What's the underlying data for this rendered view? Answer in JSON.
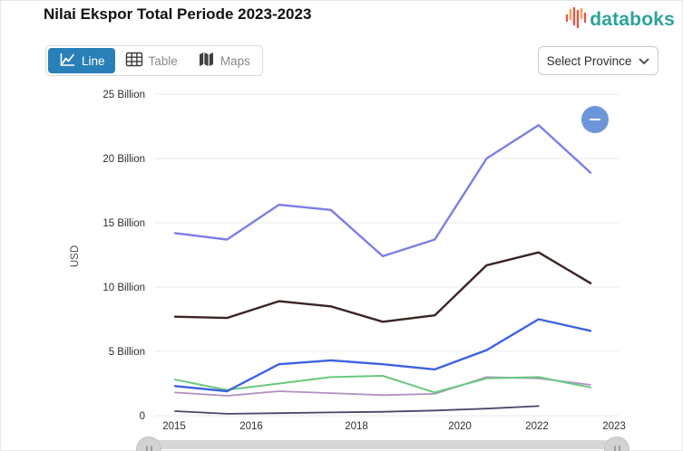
{
  "header": {
    "title": "Nilai Ekspor Total Periode 2023-2023",
    "brand": {
      "name": "databoks",
      "accent_color": "#2ba39b",
      "icon_colors": [
        "#e2574c",
        "#f2a04e"
      ]
    }
  },
  "toolbar": {
    "tabs": [
      {
        "label": "Line",
        "icon": "line-chart-icon",
        "active": true
      },
      {
        "label": "Table",
        "icon": "table-grid-icon",
        "active": false
      },
      {
        "label": "Maps",
        "icon": "folded-map-icon",
        "active": false
      }
    ],
    "active_tab_color": "#2980b9",
    "province_selector": {
      "label": "Select Province",
      "icon": "chevron-down-icon"
    }
  },
  "chart_controls": {
    "zoom_out_button": {
      "icon": "minus-icon",
      "color": "#6d96da"
    }
  },
  "chart_data": {
    "type": "line",
    "title": "Nilai Ekspor Total Periode 2023-2023",
    "x": [
      2015,
      2016,
      2017,
      2018,
      2019,
      2020,
      2021,
      2022,
      2023
    ],
    "x_tick_labels": [
      "2015",
      "2016",
      "2018",
      "2020",
      "2022",
      "2023"
    ],
    "ylabel": "USD",
    "unit": "USD billions",
    "ylim_billions": [
      0,
      25
    ],
    "grid": true,
    "legend": false,
    "y_ticks": [
      {
        "label": "0",
        "value": 0
      },
      {
        "label": "5 Billion",
        "value": 5
      },
      {
        "label": "10 Billion",
        "value": 10
      },
      {
        "label": "15 Billion",
        "value": 15
      },
      {
        "label": "20 Billion",
        "value": 20
      },
      {
        "label": "25 Billion",
        "value": 25
      }
    ],
    "series": [
      {
        "name": "series-dark-navy",
        "color": "#474868",
        "values_billions": [
          0.35,
          0.15,
          0.2,
          0.25,
          0.3,
          0.4,
          0.55,
          0.75,
          null
        ]
      },
      {
        "name": "series-violet",
        "color": "#b28fc6",
        "values_billions": [
          1.8,
          1.55,
          1.9,
          1.75,
          1.6,
          1.7,
          3.0,
          2.9,
          2.4
        ]
      },
      {
        "name": "series-green",
        "color": "#68c97d",
        "values_billions": [
          2.8,
          2.0,
          2.5,
          3.0,
          3.1,
          1.8,
          2.9,
          3.0,
          2.2
        ]
      },
      {
        "name": "series-blue",
        "color": "#3e63e0",
        "values_billions": [
          2.3,
          1.9,
          4.0,
          4.3,
          4.0,
          3.6,
          5.1,
          7.5,
          6.6
        ]
      },
      {
        "name": "series-dark-brown",
        "color": "#3b2424",
        "values_billions": [
          7.7,
          7.6,
          8.9,
          8.5,
          7.3,
          7.8,
          11.7,
          12.7,
          10.3
        ]
      },
      {
        "name": "series-periwinkle",
        "color": "#7d7ee9",
        "values_billions": [
          14.2,
          13.7,
          16.4,
          16.0,
          12.4,
          13.7,
          20.0,
          22.6,
          18.9
        ]
      }
    ]
  },
  "scrollbar": {
    "left_handle_icon": "grip-handle-icon",
    "right_handle_icon": "grip-handle-icon"
  }
}
